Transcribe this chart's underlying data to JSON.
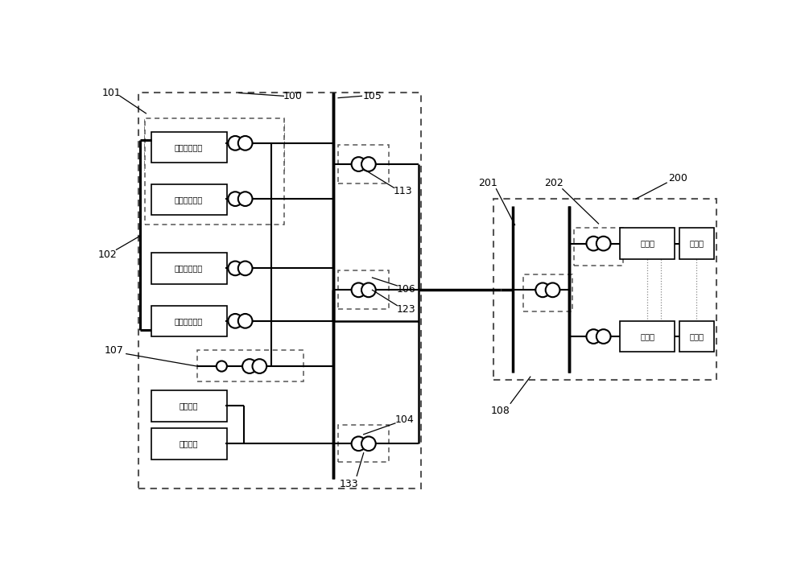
{
  "bg": "#ffffff",
  "lc": "#1a1a1a",
  "dc": "#555555",
  "labels": {
    "wind1": "风力发电机组",
    "wind2": "风力发电机组",
    "pv1": "光伏发电单元",
    "pv2": "光伏发电单元",
    "stor1": "储能装置",
    "stor2": "储能装置",
    "rect1": "整流器",
    "rect2": "整流器",
    "elec1": "电解槽",
    "elec2": "电解槽"
  },
  "ref_nums": [
    "101",
    "100",
    "105",
    "113",
    "102",
    "106",
    "123",
    "107",
    "104",
    "133",
    "108",
    "200",
    "201",
    "202"
  ]
}
